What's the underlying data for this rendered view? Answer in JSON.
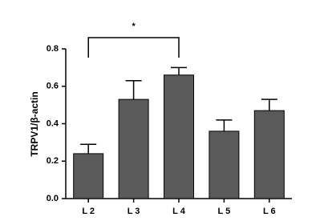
{
  "chart_data": {
    "type": "bar",
    "y_label": "TRPV1/β-actin",
    "categories": [
      "L 2",
      "L 3",
      "L 4",
      "L 5",
      "L 6"
    ],
    "values": [
      0.24,
      0.53,
      0.66,
      0.36,
      0.47
    ],
    "errors": [
      0.05,
      0.1,
      0.04,
      0.06,
      0.06
    ],
    "color": "#5a5a5a",
    "ylim": [
      0,
      0.8
    ],
    "yticks": [
      {
        "value": 0,
        "label": "0.0"
      },
      0.2,
      0.4,
      0.6,
      0.8
    ],
    "significance": {
      "pair": [
        0,
        2
      ],
      "label": "*"
    }
  }
}
